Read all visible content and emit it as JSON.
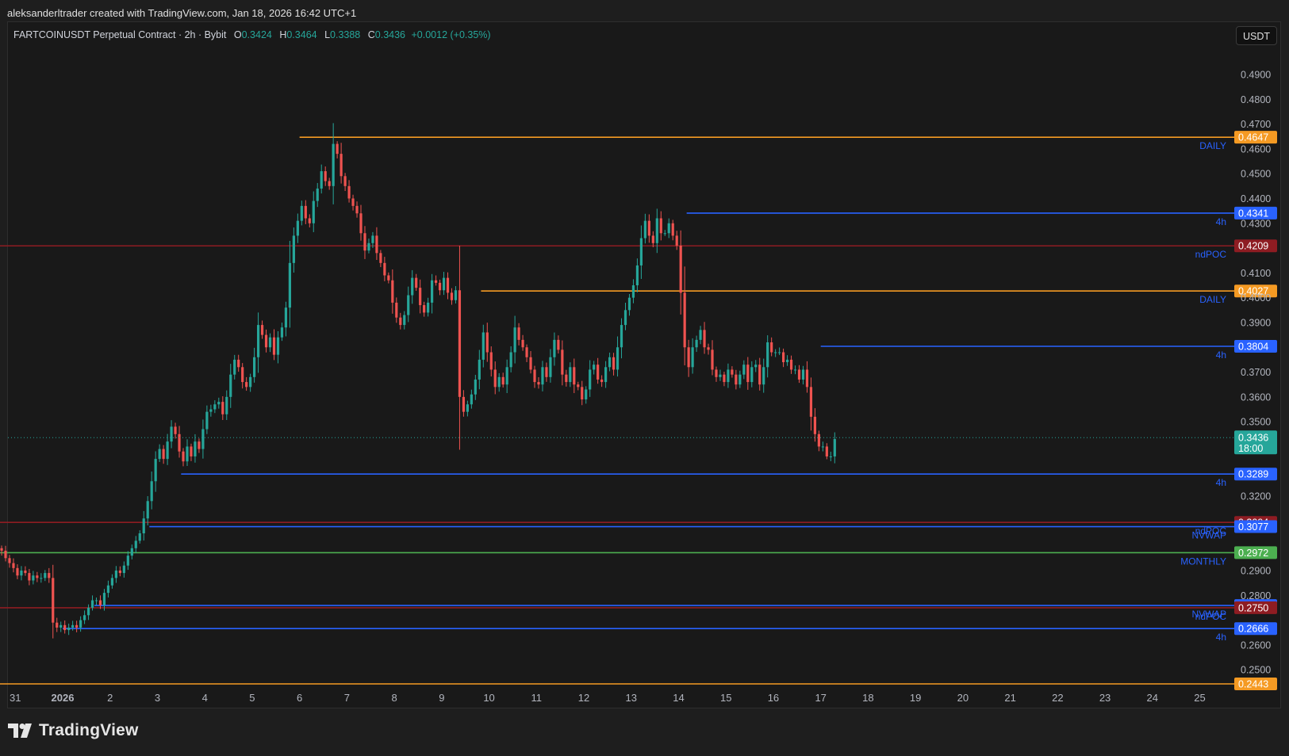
{
  "caption": "aleksanderltrader created with TradingView.com, Jan 18, 2026 16:42 UTC+1",
  "brand": "TradingView",
  "currency_button": "USDT",
  "legend": {
    "symbol": "FARTCOINUSDT Perpetual Contract · 2h · Bybit",
    "o_label": "O",
    "o": "0.3424",
    "h_label": "H",
    "h": "0.3464",
    "l_label": "L",
    "l": "0.3388",
    "c_label": "C",
    "c": "0.3436",
    "change": "+0.0012 (+0.35%)"
  },
  "colors": {
    "up": "#26a69a",
    "down": "#ef5350",
    "orange": "#f59a23",
    "blue": "#2962ff",
    "red": "#8e1c22",
    "green": "#4caf50"
  },
  "chart_data": {
    "type": "candlestick",
    "symbol": "FARTCOINUSDT Perpetual Contract",
    "interval": "2h",
    "exchange": "Bybit",
    "ylim": [
      0.2443,
      0.4935
    ],
    "y_ticks": [
      "0.4900",
      "0.4800",
      "0.4700",
      "0.4600",
      "0.4500",
      "0.4400",
      "0.4300",
      "0.4100",
      "0.4000",
      "0.3900",
      "0.3700",
      "0.3600",
      "0.3500",
      "0.3200",
      "0.2900",
      "0.2800",
      "0.2600",
      "0.2500"
    ],
    "x_ticks": [
      "31",
      "2026",
      "2",
      "3",
      "4",
      "5",
      "6",
      "7",
      "8",
      "9",
      "10",
      "11",
      "12",
      "13",
      "14",
      "15",
      "16",
      "17",
      "18",
      "19",
      "20",
      "21",
      "22",
      "23",
      "24",
      "25"
    ],
    "x_tick_values": [
      -1,
      0,
      1,
      2,
      3,
      4,
      5,
      6,
      7,
      8,
      9,
      10,
      11,
      12,
      13,
      14,
      15,
      16,
      17,
      18,
      19,
      20,
      21,
      22,
      23,
      24
    ],
    "x_units": "days from Jan 1 2026",
    "closes": [
      0.298,
      0.295,
      0.293,
      0.291,
      0.288,
      0.29,
      0.289,
      0.286,
      0.288,
      0.287,
      0.287,
      0.289,
      0.287,
      0.269,
      0.267,
      0.268,
      0.266,
      0.267,
      0.268,
      0.267,
      0.27,
      0.272,
      0.275,
      0.278,
      0.278,
      0.276,
      0.281,
      0.284,
      0.287,
      0.29,
      0.289,
      0.292,
      0.296,
      0.299,
      0.302,
      0.305,
      0.311,
      0.318,
      0.326,
      0.335,
      0.339,
      0.335,
      0.342,
      0.348,
      0.345,
      0.338,
      0.334,
      0.34,
      0.336,
      0.342,
      0.339,
      0.347,
      0.354,
      0.355,
      0.357,
      0.358,
      0.353,
      0.36,
      0.369,
      0.375,
      0.372,
      0.366,
      0.364,
      0.368,
      0.376,
      0.389,
      0.385,
      0.38,
      0.384,
      0.377,
      0.384,
      0.388,
      0.396,
      0.414,
      0.425,
      0.431,
      0.437,
      0.432,
      0.43,
      0.439,
      0.444,
      0.451,
      0.447,
      0.445,
      0.462,
      0.458,
      0.449,
      0.445,
      0.44,
      0.437,
      0.434,
      0.426,
      0.419,
      0.422,
      0.425,
      0.418,
      0.414,
      0.409,
      0.407,
      0.398,
      0.392,
      0.389,
      0.393,
      0.401,
      0.408,
      0.404,
      0.397,
      0.394,
      0.398,
      0.407,
      0.406,
      0.403,
      0.408,
      0.402,
      0.399,
      0.403,
      0.36,
      0.354,
      0.357,
      0.361,
      0.367,
      0.375,
      0.386,
      0.378,
      0.371,
      0.364,
      0.368,
      0.365,
      0.372,
      0.378,
      0.388,
      0.383,
      0.38,
      0.376,
      0.371,
      0.366,
      0.365,
      0.372,
      0.368,
      0.376,
      0.383,
      0.379,
      0.369,
      0.366,
      0.372,
      0.365,
      0.364,
      0.359,
      0.363,
      0.371,
      0.373,
      0.367,
      0.366,
      0.372,
      0.376,
      0.371,
      0.38,
      0.389,
      0.395,
      0.4,
      0.405,
      0.413,
      0.424,
      0.431,
      0.425,
      0.422,
      0.432,
      0.426,
      0.426,
      0.43,
      0.425,
      0.421,
      0.402,
      0.38,
      0.372,
      0.38,
      0.383,
      0.387,
      0.38,
      0.379,
      0.371,
      0.368,
      0.369,
      0.366,
      0.371,
      0.369,
      0.365,
      0.369,
      0.373,
      0.366,
      0.372,
      0.373,
      0.365,
      0.372,
      0.382,
      0.378,
      0.378,
      0.378,
      0.374,
      0.375,
      0.371,
      0.371,
      0.367,
      0.371,
      0.364,
      0.352,
      0.345,
      0.34,
      0.34,
      0.336,
      0.336,
      0.343
    ],
    "last_price": "0.3436",
    "countdown": "18:00",
    "levels": [
      {
        "price": 0.4647,
        "label": "DAILY",
        "color": "orange",
        "start": 5.0
      },
      {
        "price": 0.4341,
        "label": "4h",
        "color": "blue",
        "start": 13.17
      },
      {
        "price": 0.4209,
        "label": "ndPOC",
        "color": "red",
        "start": -1.35
      },
      {
        "price": 0.4027,
        "label": "DAILY",
        "color": "orange",
        "start": 8.83
      },
      {
        "price": 0.3804,
        "label": "4h",
        "color": "blue",
        "start": 16.0
      },
      {
        "price": 0.3289,
        "label": "4h",
        "color": "blue",
        "start": 2.5
      },
      {
        "price": 0.3094,
        "label": "ndPOC",
        "color": "red",
        "start": -1.35
      },
      {
        "price": 0.3077,
        "label": "NVWAP",
        "color": "blue",
        "start": 1.83
      },
      {
        "price": 0.2972,
        "label": "MONTHLY",
        "color": "green",
        "start": -1.35
      },
      {
        "price": 0.2759,
        "label": "NVWAP",
        "color": "blue",
        "start": 0.67
      },
      {
        "price": 0.275,
        "label": "ndPOC",
        "color": "red",
        "start": -1.35
      },
      {
        "price": 0.2666,
        "label": "4h",
        "color": "blue",
        "start": 0.0
      },
      {
        "price": 0.2443,
        "label": "",
        "color": "orange",
        "start": -1.35
      }
    ]
  }
}
